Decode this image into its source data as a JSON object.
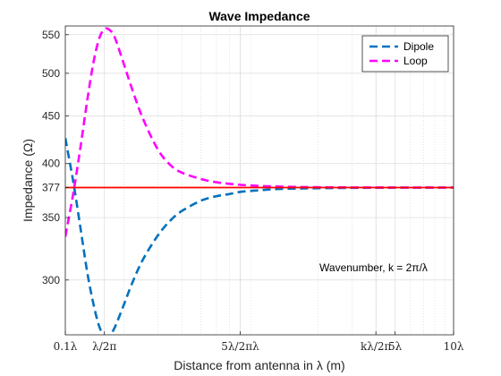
{
  "chart_data": {
    "type": "line",
    "title": "Wave Impedance",
    "xlabel": "Distance from antenna in λ (m)",
    "ylabel": "Impedance (Ω)",
    "xscale": "log",
    "yscale": "log",
    "xlim": [
      0.1,
      10
    ],
    "ylim": [
      262,
      562
    ],
    "x_ticks": [
      {
        "value": 0.1,
        "label": "0.1λ"
      },
      {
        "value": 0.159,
        "label": "λ/2π"
      },
      {
        "value": 0.796,
        "label": "5λ/2πλ"
      },
      {
        "value": 3.98,
        "label": "kλ/2π"
      },
      {
        "value": 5,
        "label": "5λ"
      },
      {
        "value": 10,
        "label": "10λ"
      }
    ],
    "y_ticks": [
      {
        "value": 300,
        "label": "300"
      },
      {
        "value": 350,
        "label": "350"
      },
      {
        "value": 377,
        "label": "377"
      },
      {
        "value": 400,
        "label": "400"
      },
      {
        "value": 450,
        "label": "450"
      },
      {
        "value": 500,
        "label": "500"
      },
      {
        "value": 550,
        "label": "550"
      }
    ],
    "grid": "on (major solid, minor dotted on x)",
    "legend_position": "top-right",
    "series": [
      {
        "name": "Dipole",
        "color": "#0072BD",
        "style": "dashed",
        "x": [
          0.1,
          0.11,
          0.12,
          0.13,
          0.14,
          0.15,
          0.16,
          0.17,
          0.18,
          0.2,
          0.22,
          0.25,
          0.3,
          0.35,
          0.4,
          0.5,
          0.6,
          0.7,
          0.8,
          1.0,
          1.2,
          1.5,
          2.0,
          3.0,
          4.0,
          5.0,
          7.0,
          10.0
        ],
        "y": [
          426,
          382,
          340,
          305,
          282,
          267,
          261,
          262,
          267,
          282,
          297,
          315,
          335,
          348,
          356,
          365,
          369,
          371,
          373,
          374.5,
          375.5,
          376,
          376.4,
          376.7,
          376.8,
          376.9,
          376.9,
          377
        ]
      },
      {
        "name": "Loop",
        "color": "#FF00FF",
        "style": "dashed",
        "x": [
          0.1,
          0.11,
          0.12,
          0.13,
          0.14,
          0.15,
          0.16,
          0.17,
          0.18,
          0.2,
          0.22,
          0.25,
          0.3,
          0.35,
          0.4,
          0.5,
          0.6,
          0.7,
          0.8,
          1.0,
          1.2,
          1.5,
          2.0,
          3.0,
          4.0,
          5.0,
          7.0,
          10.0
        ],
        "y": [
          334,
          372,
          418,
          469,
          515,
          546,
          558,
          556,
          546,
          512,
          482,
          448,
          414,
          398,
          391,
          385,
          382,
          380.5,
          379.5,
          378.5,
          378,
          377.6,
          377.3,
          377.1,
          377.05,
          377,
          377,
          377
        ]
      },
      {
        "name": "",
        "color": "#FF0000",
        "style": "solid",
        "x": [
          0.1,
          10.0
        ],
        "y": [
          377,
          377
        ]
      }
    ],
    "annotations": [
      {
        "text": "Wavenumber, k = 2π/λ",
        "x": 2.8,
        "y": 308
      }
    ]
  }
}
